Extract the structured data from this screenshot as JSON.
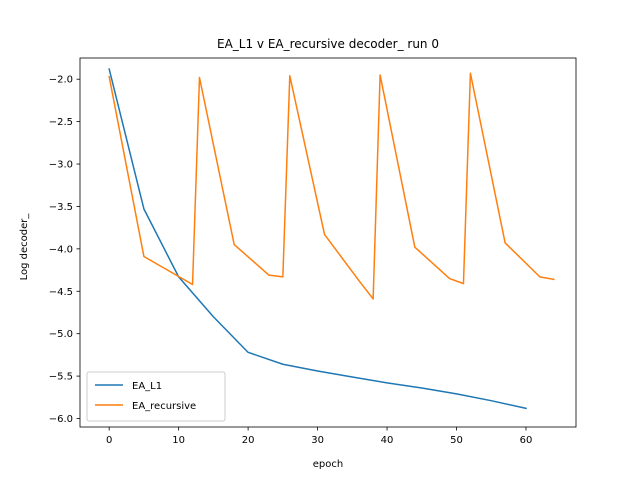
{
  "chart_data": {
    "type": "line",
    "title": "EA_L1 v EA_recursive decoder_ run 0",
    "xlabel": "epoch",
    "ylabel": "Log decoder_",
    "xlim": [
      -4.2,
      67.2
    ],
    "ylim": [
      -6.1,
      -1.75
    ],
    "xticks": [
      0,
      10,
      20,
      30,
      40,
      50,
      60
    ],
    "yticks": [
      -6.0,
      -5.5,
      -5.0,
      -4.5,
      -4.0,
      -3.5,
      -3.0,
      -2.5,
      -2.0
    ],
    "xtick_labels": [
      "0",
      "10",
      "20",
      "30",
      "40",
      "50",
      "60"
    ],
    "ytick_labels": [
      "−6.0",
      "−5.5",
      "−5.0",
      "−4.5",
      "−4.0",
      "−3.5",
      "−3.0",
      "−2.5",
      "−2.0"
    ],
    "grid": false,
    "legend_position": "lower-left",
    "series": [
      {
        "name": "EA_L1",
        "color": "#1f77b4",
        "x": [
          0,
          5,
          10,
          15,
          20,
          25,
          30,
          35,
          40,
          45,
          50,
          55,
          60
        ],
        "y": [
          -1.88,
          -3.53,
          -4.33,
          -4.8,
          -5.22,
          -5.36,
          -5.44,
          -5.51,
          -5.58,
          -5.64,
          -5.71,
          -5.79,
          -5.88
        ]
      },
      {
        "name": "EA_recursive",
        "color": "#ff7f0e",
        "x": [
          0,
          5,
          12,
          13,
          18,
          23,
          25,
          26,
          31,
          36,
          38,
          39,
          44,
          49,
          51,
          52,
          57,
          62,
          64
        ],
        "y": [
          -1.97,
          -4.09,
          -4.42,
          -1.98,
          -3.95,
          -4.31,
          -4.33,
          -1.96,
          -3.83,
          -4.38,
          -4.59,
          -1.95,
          -3.98,
          -4.35,
          -4.41,
          -1.93,
          -3.93,
          -4.33,
          -4.36
        ]
      }
    ]
  }
}
